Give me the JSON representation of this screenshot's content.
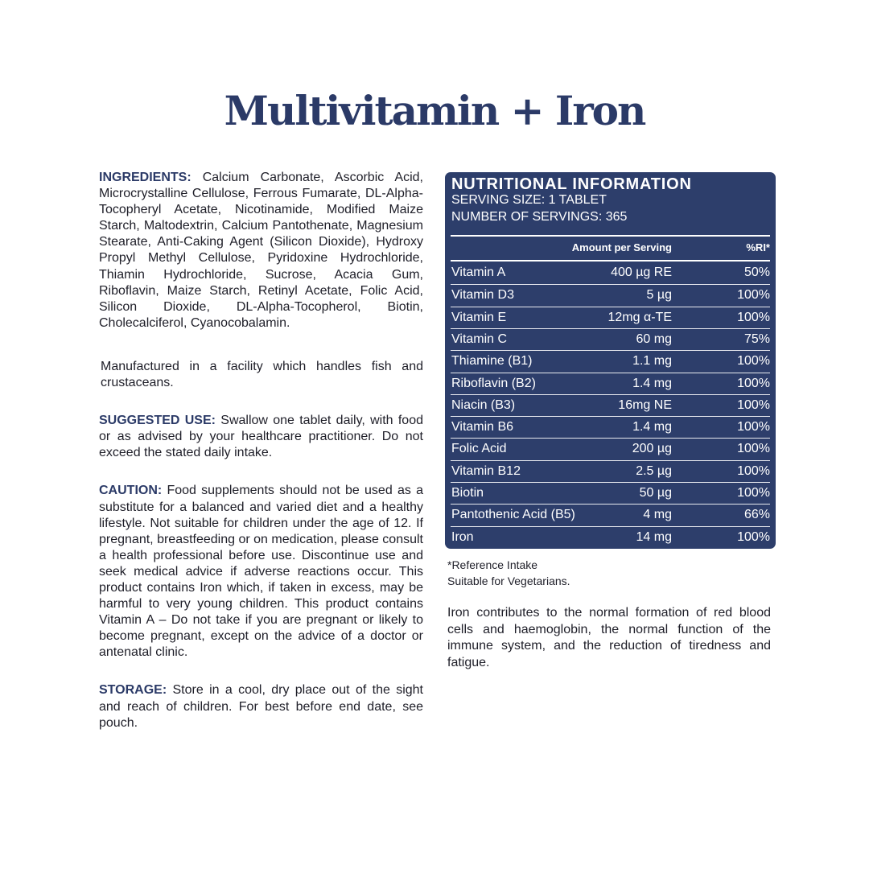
{
  "title": "Multivitamin + Iron",
  "ingredients": {
    "label": "INGREDIENTS:",
    "text": " Calcium Carbonate, Ascorbic Acid, Microcrystalline Cellulose, Ferrous Fumarate, DL-Alpha-Tocopheryl Acetate, Nicotinamide, Modified Maize Starch, Maltodextrin, Calcium Pantothenate, Magnesium Stearate, Anti-Caking Agent (Silicon Dioxide), Hydroxy Propyl Methyl Cellulose, Pyridoxine Hydrochloride, Thiamin Hydrochloride, Sucrose, Acacia Gum, Riboflavin, Maize Starch, Retinyl Acetate, Folic Acid, Silicon Dioxide, DL-Alpha-Tocopherol, Biotin, Cholecalciferol, Cyanocobalamin."
  },
  "allergen": "Manufactured in a facility which handles fish and crustaceans.",
  "suggested_use": {
    "label": "SUGGESTED USE:",
    "text": " Swallow one tablet daily, with food or as advised by your healthcare practitioner. Do not exceed the stated daily intake."
  },
  "caution": {
    "label": "CAUTION:",
    "text": " Food supplements should not be used as a substitute for a balanced and varied diet and a healthy lifestyle. Not suitable for children under the age of 12. If pregnant, breastfeeding or on medication, please consult a health professional before use. Discontinue use and seek medical advice if adverse reactions occur. This product contains Iron which, if taken in excess, may be harmful to very young children. This product contains Vitamin A – Do not take if you are pregnant or likely to become pregnant, except on the advice of a doctor or antenatal clinic."
  },
  "storage": {
    "label": "STORAGE:",
    "text": " Store in a cool, dry place out of the sight and reach of children. For best before end date, see pouch."
  },
  "nutrition": {
    "title": "NUTRITIONAL INFORMATION",
    "serving_size": "SERVING SIZE: 1 TABLET",
    "servings": "NUMBER OF SERVINGS: 365",
    "col_amount": "Amount per Serving",
    "col_ri": "%RI*",
    "rows": [
      [
        "Vitamin A",
        "400 µg RE",
        "50%"
      ],
      [
        "Vitamin D3",
        "5  µg",
        "100%"
      ],
      [
        "Vitamin E",
        "12mg α-TE",
        "100%"
      ],
      [
        "Vitamin C",
        "60 mg",
        "75%"
      ],
      [
        "Thiamine (B1)",
        "1.1 mg",
        "100%"
      ],
      [
        "Riboflavin (B2)",
        "1.4 mg",
        "100%"
      ],
      [
        "Niacin (B3)",
        "16mg NE",
        "100%"
      ],
      [
        "Vitamin B6",
        "1.4 mg",
        "100%"
      ],
      [
        "Folic Acid",
        "200 µg",
        "100%"
      ],
      [
        "Vitamin B12",
        "2.5 µg",
        "100%"
      ],
      [
        "Biotin",
        "50  µg",
        "100%"
      ],
      [
        "Pantothenic Acid (B5)",
        "4 mg",
        "66%"
      ],
      [
        "Iron",
        "14 mg",
        "100%"
      ]
    ]
  },
  "footnote": "*Reference Intake",
  "vegetarian": "Suitable for Vegetarians.",
  "iron_claim": "Iron contributes to the normal formation of red blood cells and haemoglobin, the normal function of the immune system, and the reduction of tiredness and fatigue.",
  "colors": {
    "brand": "#2d3e6b"
  }
}
